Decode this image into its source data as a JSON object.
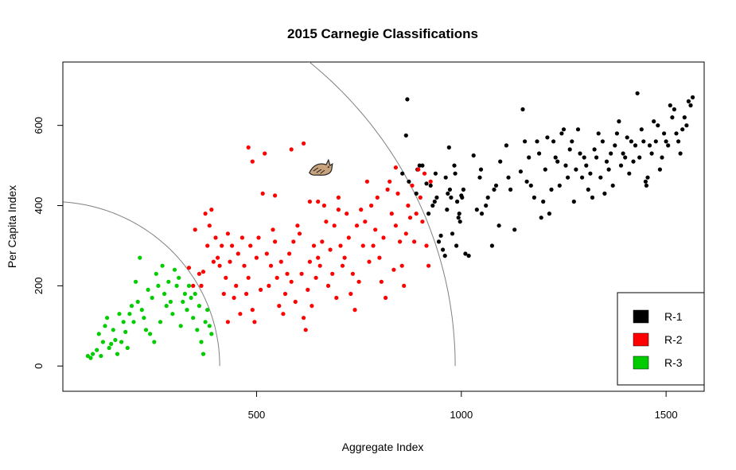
{
  "chart_data": {
    "type": "scatter",
    "title": "2015 Carnegie Classifications",
    "xlabel": "Aggregate Index",
    "ylabel": "Per Capita Index",
    "xlim": [
      27,
      1593
    ],
    "ylim": [
      -63,
      758
    ],
    "xticks": [
      500,
      1000,
      1500
    ],
    "yticks": [
      0,
      200,
      400,
      600
    ],
    "legend_position": "bottom-right",
    "arcs": [
      {
        "radius": 410,
        "color": "#808080"
      },
      {
        "radius": 985,
        "color": "#808080"
      }
    ],
    "marker": {
      "name": "cat-mascot-icon",
      "x": 658,
      "y": 490
    },
    "series": [
      {
        "name": "R-1",
        "color": "#000000",
        "points": [
          [
            856,
            480
          ],
          [
            865,
            575
          ],
          [
            868,
            665
          ],
          [
            872,
            460
          ],
          [
            890,
            430
          ],
          [
            893,
            490
          ],
          [
            898,
            500
          ],
          [
            905,
            500
          ],
          [
            915,
            455
          ],
          [
            920,
            380
          ],
          [
            925,
            450
          ],
          [
            930,
            400
          ],
          [
            935,
            410
          ],
          [
            937,
            480
          ],
          [
            940,
            420
          ],
          [
            945,
            310
          ],
          [
            950,
            325
          ],
          [
            955,
            290
          ],
          [
            960,
            275
          ],
          [
            962,
            470
          ],
          [
            965,
            390
          ],
          [
            967,
            430
          ],
          [
            970,
            545
          ],
          [
            972,
            440
          ],
          [
            975,
            420
          ],
          [
            978,
            330
          ],
          [
            983,
            500
          ],
          [
            985,
            480
          ],
          [
            988,
            300
          ],
          [
            990,
            410
          ],
          [
            993,
            370
          ],
          [
            995,
            380
          ],
          [
            997,
            360
          ],
          [
            1000,
            425
          ],
          [
            1002,
            420
          ],
          [
            1005,
            440
          ],
          [
            1010,
            280
          ],
          [
            1018,
            275
          ],
          [
            1030,
            525
          ],
          [
            1038,
            390
          ],
          [
            1045,
            470
          ],
          [
            1048,
            490
          ],
          [
            1050,
            380
          ],
          [
            1060,
            400
          ],
          [
            1065,
            420
          ],
          [
            1075,
            300
          ],
          [
            1080,
            440
          ],
          [
            1085,
            450
          ],
          [
            1092,
            350
          ],
          [
            1095,
            510
          ],
          [
            1110,
            550
          ],
          [
            1115,
            470
          ],
          [
            1120,
            440
          ],
          [
            1130,
            340
          ],
          [
            1145,
            485
          ],
          [
            1150,
            640
          ],
          [
            1155,
            560
          ],
          [
            1160,
            460
          ],
          [
            1165,
            520
          ],
          [
            1170,
            450
          ],
          [
            1178,
            420
          ],
          [
            1185,
            560
          ],
          [
            1190,
            530
          ],
          [
            1195,
            370
          ],
          [
            1200,
            410
          ],
          [
            1205,
            490
          ],
          [
            1210,
            570
          ],
          [
            1215,
            380
          ],
          [
            1220,
            440
          ],
          [
            1225,
            560
          ],
          [
            1230,
            520
          ],
          [
            1235,
            510
          ],
          [
            1240,
            450
          ],
          [
            1245,
            580
          ],
          [
            1250,
            590
          ],
          [
            1255,
            500
          ],
          [
            1260,
            470
          ],
          [
            1265,
            540
          ],
          [
            1270,
            560
          ],
          [
            1275,
            410
          ],
          [
            1280,
            490
          ],
          [
            1285,
            590
          ],
          [
            1290,
            530
          ],
          [
            1295,
            470
          ],
          [
            1300,
            520
          ],
          [
            1305,
            500
          ],
          [
            1310,
            440
          ],
          [
            1315,
            480
          ],
          [
            1320,
            420
          ],
          [
            1325,
            540
          ],
          [
            1330,
            520
          ],
          [
            1335,
            580
          ],
          [
            1340,
            470
          ],
          [
            1345,
            560
          ],
          [
            1350,
            430
          ],
          [
            1355,
            510
          ],
          [
            1360,
            490
          ],
          [
            1365,
            530
          ],
          [
            1370,
            450
          ],
          [
            1375,
            550
          ],
          [
            1380,
            580
          ],
          [
            1385,
            610
          ],
          [
            1390,
            500
          ],
          [
            1395,
            530
          ],
          [
            1400,
            520
          ],
          [
            1405,
            570
          ],
          [
            1410,
            480
          ],
          [
            1415,
            560
          ],
          [
            1420,
            510
          ],
          [
            1425,
            550
          ],
          [
            1430,
            680
          ],
          [
            1435,
            520
          ],
          [
            1440,
            590
          ],
          [
            1445,
            560
          ],
          [
            1450,
            460
          ],
          [
            1452,
            450
          ],
          [
            1455,
            470
          ],
          [
            1460,
            550
          ],
          [
            1465,
            530
          ],
          [
            1470,
            610
          ],
          [
            1475,
            560
          ],
          [
            1480,
            600
          ],
          [
            1485,
            490
          ],
          [
            1490,
            520
          ],
          [
            1495,
            580
          ],
          [
            1500,
            560
          ],
          [
            1505,
            550
          ],
          [
            1510,
            650
          ],
          [
            1515,
            620
          ],
          [
            1520,
            640
          ],
          [
            1525,
            580
          ],
          [
            1530,
            560
          ],
          [
            1535,
            530
          ],
          [
            1540,
            590
          ],
          [
            1545,
            620
          ],
          [
            1550,
            600
          ],
          [
            1555,
            660
          ],
          [
            1560,
            650
          ],
          [
            1565,
            670
          ]
        ]
      },
      {
        "name": "R-2",
        "color": "#ff0000",
        "points": [
          [
            335,
            245
          ],
          [
            345,
            200
          ],
          [
            350,
            340
          ],
          [
            360,
            230
          ],
          [
            365,
            200
          ],
          [
            370,
            235
          ],
          [
            375,
            380
          ],
          [
            380,
            300
          ],
          [
            385,
            350
          ],
          [
            390,
            390
          ],
          [
            395,
            260
          ],
          [
            400,
            320
          ],
          [
            405,
            270
          ],
          [
            410,
            250
          ],
          [
            415,
            300
          ],
          [
            420,
            180
          ],
          [
            425,
            220
          ],
          [
            430,
            330
          ],
          [
            435,
            260
          ],
          [
            440,
            300
          ],
          [
            445,
            170
          ],
          [
            450,
            200
          ],
          [
            455,
            280
          ],
          [
            460,
            130
          ],
          [
            465,
            320
          ],
          [
            470,
            250
          ],
          [
            475,
            180
          ],
          [
            480,
            220
          ],
          [
            485,
            300
          ],
          [
            490,
            140
          ],
          [
            495,
            110
          ],
          [
            500,
            270
          ],
          [
            505,
            320
          ],
          [
            510,
            190
          ],
          [
            515,
            430
          ],
          [
            520,
            530
          ],
          [
            525,
            280
          ],
          [
            530,
            200
          ],
          [
            535,
            250
          ],
          [
            540,
            340
          ],
          [
            545,
            310
          ],
          [
            550,
            220
          ],
          [
            555,
            150
          ],
          [
            560,
            260
          ],
          [
            565,
            130
          ],
          [
            570,
            180
          ],
          [
            575,
            230
          ],
          [
            580,
            280
          ],
          [
            585,
            210
          ],
          [
            590,
            310
          ],
          [
            595,
            160
          ],
          [
            600,
            350
          ],
          [
            605,
            330
          ],
          [
            610,
            230
          ],
          [
            615,
            120
          ],
          [
            620,
            90
          ],
          [
            625,
            190
          ],
          [
            630,
            410
          ],
          [
            635,
            150
          ],
          [
            640,
            300
          ],
          [
            645,
            220
          ],
          [
            650,
            270
          ],
          [
            655,
            250
          ],
          [
            660,
            310
          ],
          [
            665,
            400
          ],
          [
            670,
            360
          ],
          [
            675,
            200
          ],
          [
            680,
            290
          ],
          [
            685,
            230
          ],
          [
            690,
            350
          ],
          [
            695,
            170
          ],
          [
            700,
            420
          ],
          [
            705,
            300
          ],
          [
            710,
            250
          ],
          [
            715,
            270
          ],
          [
            720,
            380
          ],
          [
            725,
            320
          ],
          [
            730,
            180
          ],
          [
            735,
            230
          ],
          [
            740,
            140
          ],
          [
            745,
            350
          ],
          [
            750,
            210
          ],
          [
            755,
            390
          ],
          [
            760,
            300
          ],
          [
            765,
            360
          ],
          [
            770,
            460
          ],
          [
            775,
            260
          ],
          [
            780,
            400
          ],
          [
            785,
            300
          ],
          [
            790,
            340
          ],
          [
            795,
            420
          ],
          [
            800,
            270
          ],
          [
            805,
            210
          ],
          [
            810,
            320
          ],
          [
            815,
            170
          ],
          [
            820,
            440
          ],
          [
            825,
            460
          ],
          [
            830,
            380
          ],
          [
            835,
            240
          ],
          [
            840,
            350
          ],
          [
            845,
            430
          ],
          [
            850,
            310
          ],
          [
            855,
            250
          ],
          [
            860,
            200
          ],
          [
            865,
            330
          ],
          [
            870,
            400
          ],
          [
            875,
            370
          ],
          [
            880,
            450
          ],
          [
            885,
            310
          ],
          [
            890,
            380
          ],
          [
            895,
            490
          ],
          [
            900,
            420
          ],
          [
            905,
            360
          ],
          [
            910,
            480
          ],
          [
            915,
            300
          ],
          [
            920,
            250
          ],
          [
            925,
            460
          ],
          [
            480,
            545
          ],
          [
            490,
            510
          ],
          [
            545,
            425
          ],
          [
            585,
            540
          ],
          [
            615,
            555
          ],
          [
            650,
            410
          ],
          [
            700,
            390
          ],
          [
            840,
            495
          ],
          [
            430,
            110
          ],
          [
            630,
            260
          ]
        ]
      },
      {
        "name": "R-3",
        "color": "#00cc00",
        "points": [
          [
            88,
            25
          ],
          [
            95,
            20
          ],
          [
            100,
            30
          ],
          [
            110,
            40
          ],
          [
            115,
            80
          ],
          [
            120,
            25
          ],
          [
            125,
            60
          ],
          [
            130,
            100
          ],
          [
            135,
            120
          ],
          [
            140,
            45
          ],
          [
            145,
            55
          ],
          [
            150,
            90
          ],
          [
            155,
            65
          ],
          [
            160,
            30
          ],
          [
            165,
            130
          ],
          [
            170,
            60
          ],
          [
            175,
            110
          ],
          [
            180,
            85
          ],
          [
            185,
            45
          ],
          [
            190,
            130
          ],
          [
            195,
            150
          ],
          [
            200,
            110
          ],
          [
            205,
            210
          ],
          [
            210,
            160
          ],
          [
            215,
            270
          ],
          [
            220,
            140
          ],
          [
            225,
            120
          ],
          [
            230,
            90
          ],
          [
            235,
            190
          ],
          [
            240,
            80
          ],
          [
            245,
            170
          ],
          [
            250,
            60
          ],
          [
            255,
            230
          ],
          [
            260,
            200
          ],
          [
            265,
            110
          ],
          [
            270,
            250
          ],
          [
            275,
            180
          ],
          [
            280,
            150
          ],
          [
            285,
            210
          ],
          [
            290,
            160
          ],
          [
            295,
            130
          ],
          [
            300,
            240
          ],
          [
            305,
            200
          ],
          [
            310,
            220
          ],
          [
            315,
            100
          ],
          [
            320,
            160
          ],
          [
            325,
            180
          ],
          [
            330,
            140
          ],
          [
            335,
            200
          ],
          [
            340,
            170
          ],
          [
            345,
            120
          ],
          [
            350,
            180
          ],
          [
            355,
            90
          ],
          [
            360,
            150
          ],
          [
            365,
            60
          ],
          [
            370,
            30
          ],
          [
            375,
            110
          ],
          [
            380,
            140
          ],
          [
            385,
            100
          ],
          [
            390,
            80
          ]
        ]
      }
    ]
  }
}
